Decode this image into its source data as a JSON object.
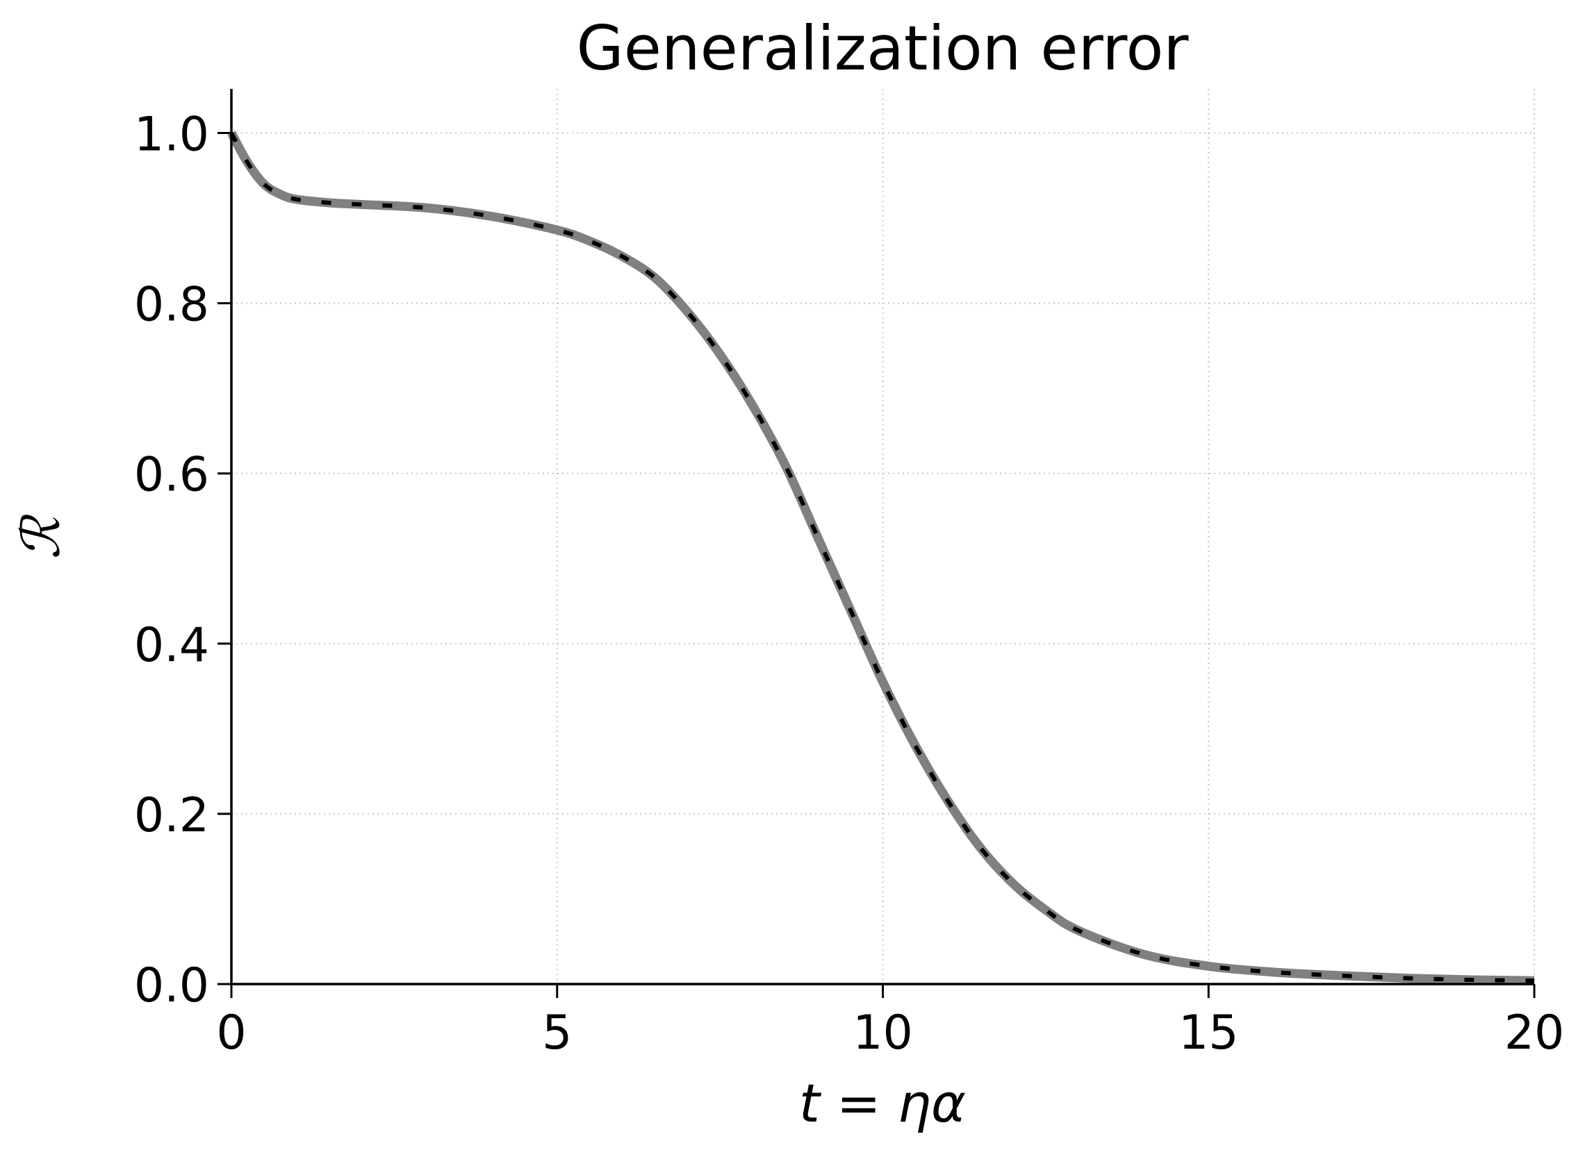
{
  "chart_data": {
    "type": "line",
    "title": "Generalization error",
    "xlabel": "t = ηα",
    "ylabel": "ℛ",
    "xlim": [
      0,
      20
    ],
    "ylim": [
      0,
      1.05
    ],
    "xticks": [
      0,
      5,
      10,
      15,
      20
    ],
    "xtick_labels": [
      "0",
      "5",
      "10",
      "15",
      "20"
    ],
    "yticks": [
      0.0,
      0.2,
      0.4,
      0.6,
      0.8,
      1.0
    ],
    "ytick_labels": [
      "0.0",
      "0.2",
      "0.4",
      "0.6",
      "0.8",
      "1.0"
    ],
    "grid": true,
    "x": [
      0,
      0.25,
      0.5,
      0.75,
      1,
      1.5,
      2,
      3,
      4,
      5,
      5.5,
      6,
      6.5,
      7,
      7.5,
      8,
      8.5,
      9,
      9.5,
      10,
      10.5,
      11,
      11.5,
      12,
      12.5,
      13,
      14,
      15,
      16,
      17,
      18,
      19,
      20
    ],
    "series": [
      {
        "style": "solid",
        "color": "#808080",
        "values": [
          1.0,
          0.965,
          0.94,
          0.928,
          0.922,
          0.918,
          0.916,
          0.912,
          0.902,
          0.886,
          0.873,
          0.855,
          0.83,
          0.79,
          0.74,
          0.68,
          0.61,
          0.525,
          0.44,
          0.355,
          0.28,
          0.215,
          0.16,
          0.118,
          0.087,
          0.063,
          0.035,
          0.021,
          0.014,
          0.01,
          0.007,
          0.005,
          0.004
        ]
      },
      {
        "style": "dashed",
        "color": "#000000",
        "values": [
          1.0,
          0.965,
          0.94,
          0.928,
          0.922,
          0.918,
          0.916,
          0.912,
          0.902,
          0.886,
          0.873,
          0.855,
          0.83,
          0.79,
          0.74,
          0.68,
          0.61,
          0.525,
          0.44,
          0.355,
          0.28,
          0.215,
          0.16,
          0.118,
          0.087,
          0.063,
          0.035,
          0.021,
          0.014,
          0.01,
          0.007,
          0.005,
          0.004
        ]
      }
    ]
  }
}
